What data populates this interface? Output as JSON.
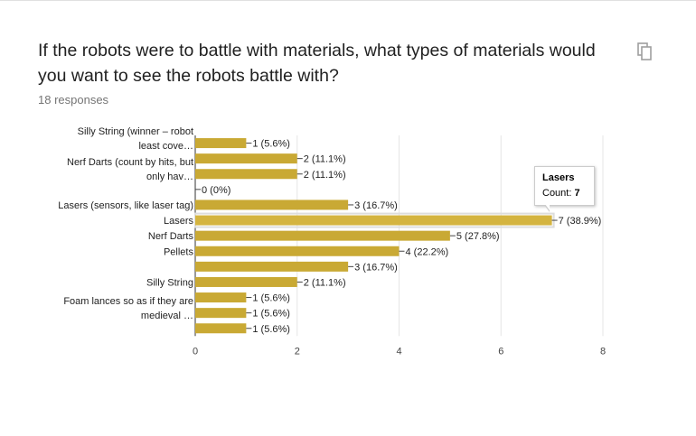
{
  "question": {
    "title": "If the robots were to battle with materials, what types of materials would you want to see the robots battle with?",
    "responses": "18 responses",
    "copy_icon": "copy-icon"
  },
  "tooltip": {
    "category": "Lasers",
    "count_label": "Count:",
    "count_value": "7"
  },
  "colors": {
    "bar": "#c9a934",
    "bar_highlight": "#d4b440",
    "grid": "#e6e6e6"
  },
  "chart_data": {
    "type": "bar",
    "orientation": "horizontal",
    "title": "",
    "xlabel": "",
    "ylabel": "",
    "xlim": [
      0,
      8
    ],
    "xticks": [
      0,
      2,
      4,
      6,
      8
    ],
    "grid": true,
    "categories": [
      [
        "Silly String (winner – robot",
        "least cove…"
      ],
      [],
      [
        "Nerf Darts (count by hits, but",
        "only hav…"
      ],
      [],
      [
        "Lasers (sensors, like laser tag)"
      ],
      [
        "Lasers"
      ],
      [
        "Nerf Darts"
      ],
      [
        "Pellets"
      ],
      [],
      [
        "Silly String"
      ],
      [],
      [
        "Foam lances so as if they are",
        "medieval …"
      ],
      []
    ],
    "values": [
      1,
      2,
      2,
      0,
      3,
      7,
      5,
      4,
      3,
      2,
      1,
      1,
      1
    ],
    "value_labels": [
      "1 (5.6%)",
      "2 (11.1%)",
      "2 (11.1%)",
      "0 (0%)",
      "3 (16.7%)",
      "7 (38.9%)",
      "5 (27.8%)",
      "4 (22.2%)",
      "3 (16.7%)",
      "2 (11.1%)",
      "1 (5.6%)",
      "1 (5.6%)",
      "1 (5.6%)"
    ],
    "highlighted": "Lasers"
  }
}
